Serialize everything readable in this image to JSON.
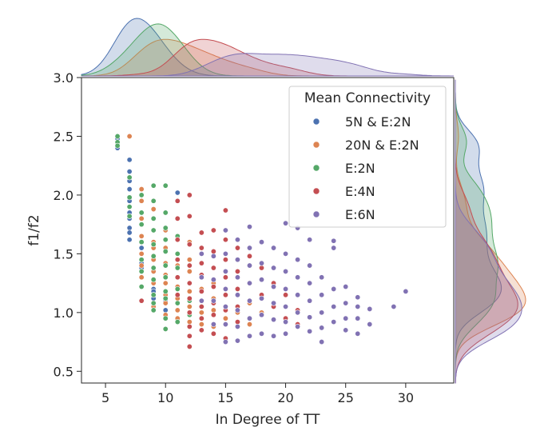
{
  "chart_data": {
    "type": "scatter",
    "title": "",
    "xlabel": "In Degree of TT",
    "ylabel": "f1/f2",
    "xlim": [
      3,
      34
    ],
    "ylim": [
      0.4,
      3.0
    ],
    "xticks": [
      5,
      10,
      15,
      20,
      25,
      30
    ],
    "yticks": [
      0.5,
      1.0,
      1.5,
      2.0,
      2.5,
      3.0
    ],
    "xtick_labels": [
      "5",
      "10",
      "15",
      "20",
      "25",
      "30"
    ],
    "ytick_labels": [
      "0.5",
      "1.0",
      "1.5",
      "2.0",
      "2.5",
      "3.0"
    ],
    "grid": false,
    "legend": {
      "title": "Mean Connectivity",
      "position": "top-right"
    },
    "marginals": {
      "top": "kde of In Degree of TT per series",
      "right": "kde of f1/f2 per series"
    },
    "series": [
      {
        "name": "5N & E:2N",
        "color": "#4c72b0",
        "x_center": 8.5,
        "x_spread": 1.2,
        "points": [
          [
            6,
            2.4
          ],
          [
            6,
            2.45
          ],
          [
            6,
            2.48
          ],
          [
            7,
            2.3
          ],
          [
            7,
            2.2
          ],
          [
            7,
            2.12
          ],
          [
            7,
            2.05
          ],
          [
            7,
            1.95
          ],
          [
            7,
            1.85
          ],
          [
            7,
            1.8
          ],
          [
            7,
            1.72
          ],
          [
            7,
            1.68
          ],
          [
            7,
            1.62
          ],
          [
            8,
            1.55
          ],
          [
            8,
            1.5
          ],
          [
            8,
            1.42
          ],
          [
            8,
            1.38
          ],
          [
            8,
            1.3
          ],
          [
            9,
            1.25
          ],
          [
            9,
            1.28
          ],
          [
            9,
            1.2
          ],
          [
            9,
            1.18
          ],
          [
            9,
            1.12
          ],
          [
            9,
            1.05
          ],
          [
            10,
            1.02
          ],
          [
            10,
            1.1
          ],
          [
            11,
            2.02
          ]
        ]
      },
      {
        "name": "20N & E:2N",
        "color": "#dd8452",
        "x_center": 10.5,
        "x_spread": 2.5,
        "points": [
          [
            7,
            2.5
          ],
          [
            8,
            2.05
          ],
          [
            8,
            1.95
          ],
          [
            8,
            1.8
          ],
          [
            8,
            1.65
          ],
          [
            8,
            1.5
          ],
          [
            8,
            1.4
          ],
          [
            8,
            1.3
          ],
          [
            9,
            1.88
          ],
          [
            9,
            1.6
          ],
          [
            9,
            1.55
          ],
          [
            9,
            1.45
          ],
          [
            9,
            1.35
          ],
          [
            9,
            1.25
          ],
          [
            9,
            1.15
          ],
          [
            9,
            1.05
          ],
          [
            10,
            1.7
          ],
          [
            10,
            1.55
          ],
          [
            10,
            1.42
          ],
          [
            10,
            1.32
          ],
          [
            10,
            1.25
          ],
          [
            10,
            1.15
          ],
          [
            10,
            1.08
          ],
          [
            10,
            0.98
          ],
          [
            11,
            1.5
          ],
          [
            11,
            1.4
          ],
          [
            11,
            1.3
          ],
          [
            11,
            1.22
          ],
          [
            11,
            1.12
          ],
          [
            11,
            1.02
          ],
          [
            11,
            0.95
          ],
          [
            12,
            1.6
          ],
          [
            12,
            1.45
          ],
          [
            12,
            1.35
          ],
          [
            12,
            1.18
          ],
          [
            12,
            1.05
          ],
          [
            12,
            0.92
          ],
          [
            13,
            1.3
          ],
          [
            13,
            1.2
          ],
          [
            13,
            1.1
          ],
          [
            13,
            1.0
          ],
          [
            13,
            0.9
          ],
          [
            14,
            1.25
          ],
          [
            14,
            1.12
          ],
          [
            14,
            1.02
          ],
          [
            14,
            0.88
          ],
          [
            15,
            1.2
          ],
          [
            15,
            1.05
          ],
          [
            15,
            0.95
          ],
          [
            16,
            1.15
          ],
          [
            16,
            1.0
          ],
          [
            17,
            1.08
          ],
          [
            17,
            0.9
          ],
          [
            18,
            1.0
          ]
        ]
      },
      {
        "name": "E:2N",
        "color": "#55a868",
        "x_center": 10.2,
        "x_spread": 1.0,
        "points": [
          [
            6,
            2.45
          ],
          [
            6,
            2.5
          ],
          [
            6,
            2.42
          ],
          [
            7,
            2.15
          ],
          [
            7,
            1.98
          ],
          [
            7,
            1.9
          ],
          [
            7,
            1.82
          ],
          [
            8,
            2.0
          ],
          [
            8,
            1.85
          ],
          [
            8,
            1.75
          ],
          [
            8,
            1.6
          ],
          [
            8,
            1.45
          ],
          [
            8,
            1.35
          ],
          [
            8,
            1.22
          ],
          [
            9,
            2.08
          ],
          [
            9,
            1.95
          ],
          [
            9,
            1.8
          ],
          [
            9,
            1.7
          ],
          [
            9,
            1.58
          ],
          [
            9,
            1.48
          ],
          [
            9,
            1.38
          ],
          [
            9,
            1.28
          ],
          [
            9,
            1.15
          ],
          [
            9,
            1.08
          ],
          [
            9,
            1.02
          ],
          [
            10,
            2.08
          ],
          [
            10,
            1.85
          ],
          [
            10,
            1.72
          ],
          [
            10,
            1.62
          ],
          [
            10,
            1.52
          ],
          [
            10,
            1.4
          ],
          [
            10,
            1.3
          ],
          [
            10,
            1.18
          ],
          [
            10,
            1.12
          ],
          [
            10,
            0.95
          ],
          [
            10,
            0.86
          ],
          [
            11,
            1.65
          ],
          [
            11,
            1.5
          ],
          [
            11,
            1.38
          ],
          [
            11,
            1.2
          ],
          [
            11,
            1.08
          ],
          [
            11,
            0.92
          ],
          [
            12,
            1.4
          ],
          [
            12,
            1.1
          ],
          [
            12,
            0.98
          ]
        ]
      },
      {
        "name": "E:4N",
        "color": "#c44e52",
        "x_center": 13.5,
        "x_spread": 2.0,
        "points": [
          [
            8,
            1.1
          ],
          [
            11,
            1.95
          ],
          [
            11,
            1.8
          ],
          [
            11,
            1.62
          ],
          [
            11,
            1.45
          ],
          [
            11,
            1.3
          ],
          [
            11,
            1.15
          ],
          [
            12,
            2.0
          ],
          [
            12,
            1.82
          ],
          [
            12,
            1.58
          ],
          [
            12,
            1.4
          ],
          [
            12,
            1.25
          ],
          [
            12,
            1.12
          ],
          [
            12,
            1.0
          ],
          [
            12,
            0.88
          ],
          [
            12,
            0.8
          ],
          [
            12,
            0.71
          ],
          [
            13,
            1.68
          ],
          [
            13,
            1.55
          ],
          [
            13,
            1.42
          ],
          [
            13,
            1.32
          ],
          [
            13,
            1.18
          ],
          [
            13,
            1.05
          ],
          [
            13,
            0.95
          ],
          [
            13,
            0.85
          ],
          [
            14,
            1.7
          ],
          [
            14,
            1.52
          ],
          [
            14,
            1.38
          ],
          [
            14,
            1.22
          ],
          [
            14,
            1.08
          ],
          [
            14,
            0.98
          ],
          [
            14,
            0.82
          ],
          [
            15,
            1.87
          ],
          [
            15,
            1.62
          ],
          [
            15,
            1.45
          ],
          [
            15,
            1.3
          ],
          [
            15,
            1.15
          ],
          [
            15,
            1.02
          ],
          [
            15,
            0.9
          ],
          [
            15,
            0.78
          ],
          [
            16,
            1.55
          ],
          [
            16,
            1.35
          ],
          [
            16,
            1.2
          ],
          [
            16,
            1.05
          ],
          [
            16,
            0.92
          ],
          [
            17,
            1.48
          ],
          [
            17,
            1.25
          ],
          [
            17,
            1.1
          ],
          [
            17,
            0.95
          ],
          [
            18,
            1.38
          ],
          [
            18,
            1.15
          ],
          [
            18,
            0.98
          ],
          [
            19,
            1.25
          ],
          [
            19,
            1.05
          ],
          [
            20,
            1.15
          ],
          [
            20,
            0.95
          ],
          [
            21,
            1.02
          ],
          [
            21,
            0.9
          ]
        ]
      },
      {
        "name": "E:6N",
        "color": "#8172b3",
        "x_center": 17.5,
        "x_spread": 3.5,
        "points": [
          [
            13,
            1.5
          ],
          [
            13,
            1.3
          ],
          [
            13,
            1.1
          ],
          [
            14,
            1.48
          ],
          [
            14,
            1.28
          ],
          [
            14,
            1.1
          ],
          [
            14,
            0.9
          ],
          [
            15,
            1.7
          ],
          [
            15,
            1.5
          ],
          [
            15,
            1.35
          ],
          [
            15,
            1.2
          ],
          [
            15,
            1.05
          ],
          [
            15,
            0.9
          ],
          [
            15,
            0.75
          ],
          [
            16,
            1.62
          ],
          [
            16,
            1.45
          ],
          [
            16,
            1.3
          ],
          [
            16,
            1.15
          ],
          [
            16,
            1.02
          ],
          [
            16,
            0.88
          ],
          [
            16,
            0.76
          ],
          [
            17,
            1.73
          ],
          [
            17,
            1.55
          ],
          [
            17,
            1.4
          ],
          [
            17,
            1.25
          ],
          [
            17,
            1.1
          ],
          [
            17,
            0.95
          ],
          [
            17,
            0.8
          ],
          [
            18,
            1.6
          ],
          [
            18,
            1.42
          ],
          [
            18,
            1.28
          ],
          [
            18,
            1.12
          ],
          [
            18,
            0.98
          ],
          [
            18,
            0.82
          ],
          [
            19,
            1.55
          ],
          [
            19,
            1.38
          ],
          [
            19,
            1.22
          ],
          [
            19,
            1.08
          ],
          [
            19,
            0.94
          ],
          [
            19,
            0.8
          ],
          [
            20,
            1.76
          ],
          [
            20,
            1.5
          ],
          [
            20,
            1.35
          ],
          [
            20,
            1.2
          ],
          [
            20,
            1.05
          ],
          [
            20,
            0.92
          ],
          [
            20,
            0.82
          ],
          [
            21,
            1.72
          ],
          [
            21,
            1.45
          ],
          [
            21,
            1.3
          ],
          [
            21,
            1.15
          ],
          [
            21,
            1.0
          ],
          [
            21,
            0.88
          ],
          [
            22,
            1.62
          ],
          [
            22,
            1.4
          ],
          [
            22,
            1.25
          ],
          [
            22,
            1.1
          ],
          [
            22,
            0.96
          ],
          [
            22,
            0.84
          ],
          [
            23,
            1.3
          ],
          [
            23,
            1.15
          ],
          [
            23,
            1.0
          ],
          [
            23,
            0.87
          ],
          [
            23,
            0.75
          ],
          [
            24,
            1.61
          ],
          [
            24,
            1.55
          ],
          [
            24,
            1.2
          ],
          [
            24,
            1.05
          ],
          [
            24,
            0.92
          ],
          [
            25,
            1.22
          ],
          [
            25,
            1.08
          ],
          [
            25,
            0.95
          ],
          [
            25,
            0.85
          ],
          [
            26,
            1.13
          ],
          [
            26,
            1.05
          ],
          [
            26,
            0.95
          ],
          [
            26,
            0.82
          ],
          [
            27,
            1.03
          ],
          [
            27,
            0.9
          ],
          [
            29,
            1.05
          ],
          [
            30,
            1.18
          ]
        ]
      }
    ]
  }
}
